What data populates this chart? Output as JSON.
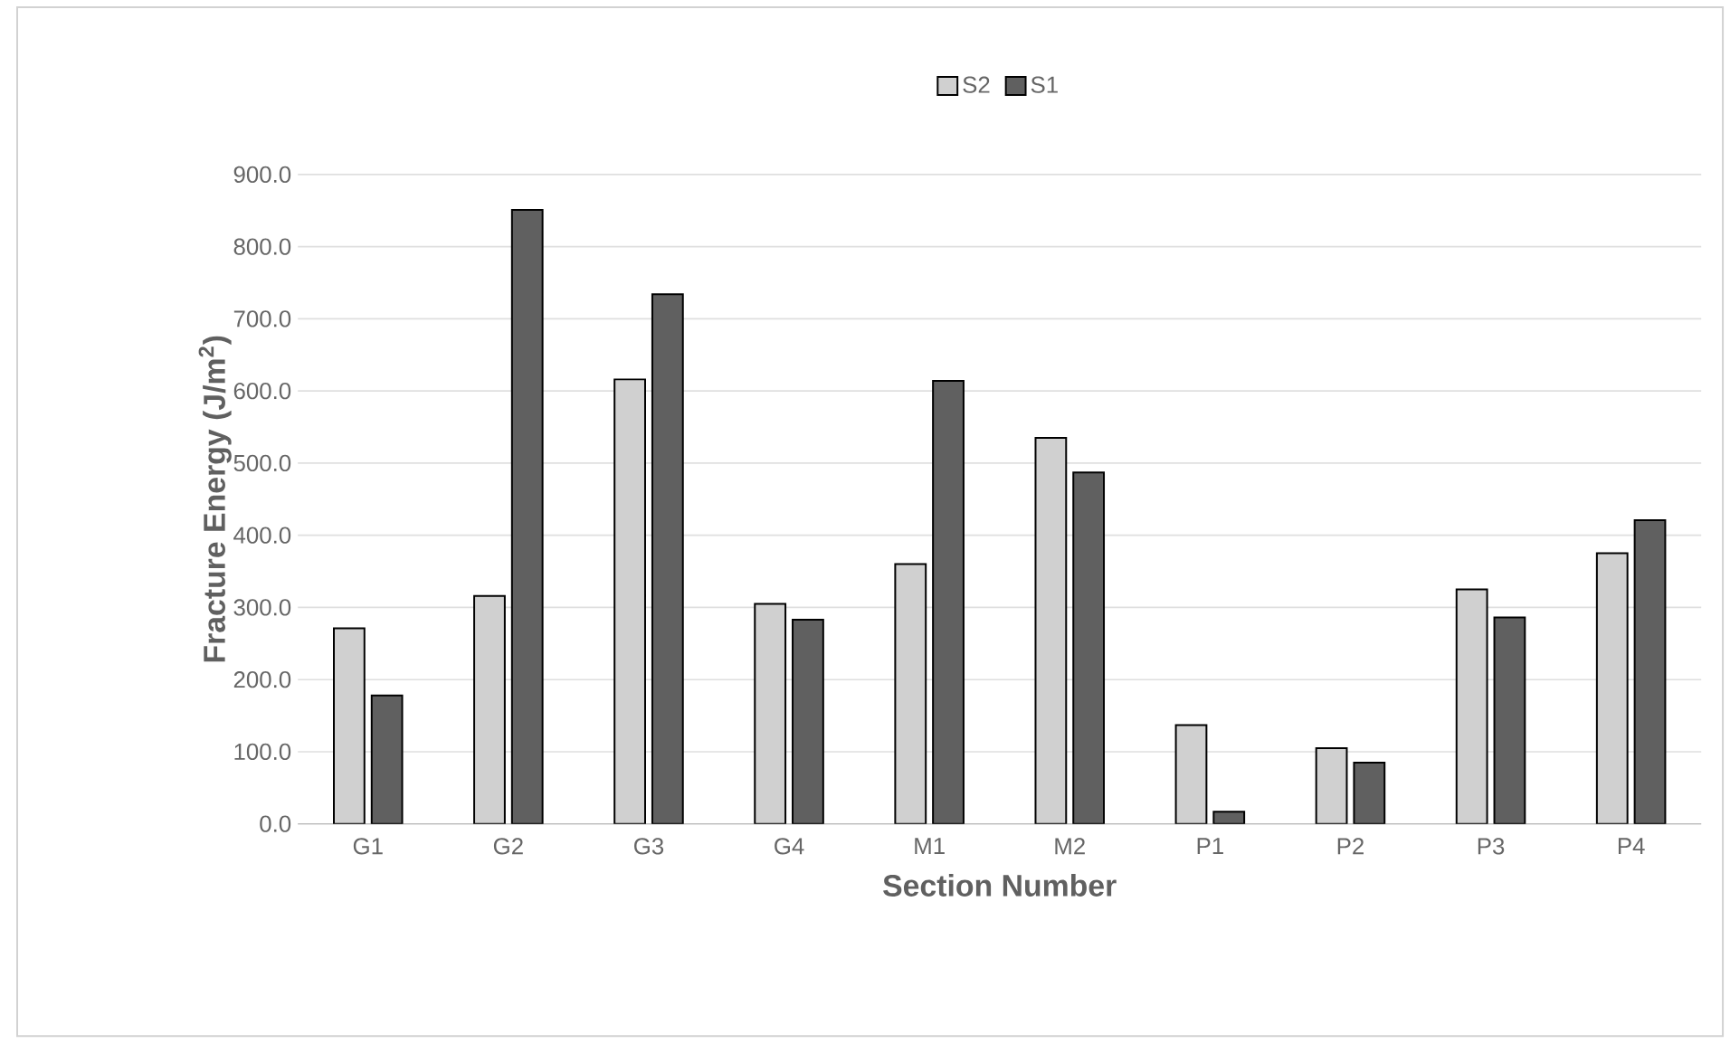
{
  "chart_data": {
    "type": "bar",
    "xlabel": "Section Number",
    "ylabel": "Fracture Energy (J/m$^{2}$)",
    "categories": [
      "G1",
      "G2",
      "G3",
      "G4",
      "M1",
      "M2",
      "P1",
      "P2",
      "P3",
      "P4"
    ],
    "series": [
      {
        "name": "S2",
        "color": "#d0d0d0",
        "values": [
          271,
          316,
          616,
          305,
          360,
          535,
          137,
          105,
          325,
          375
        ]
      },
      {
        "name": "S1",
        "color": "#606060",
        "values": [
          178,
          851,
          734,
          283,
          614,
          487,
          17,
          85,
          286,
          421
        ]
      }
    ],
    "ylim": [
      0,
      900
    ],
    "yticks": [
      {
        "value": 0,
        "label": "0.0"
      },
      {
        "value": 100,
        "label": "100.0"
      },
      {
        "value": 200,
        "label": "200.0"
      },
      {
        "value": 300,
        "label": "300.0"
      },
      {
        "value": 400,
        "label": "400.0"
      },
      {
        "value": 500,
        "label": "500.0"
      },
      {
        "value": 600,
        "label": "600.0"
      },
      {
        "value": 700,
        "label": "700.0"
      },
      {
        "value": 800,
        "label": "800.0"
      },
      {
        "value": 900,
        "label": "900.0"
      }
    ],
    "grid": "y",
    "legend": "top"
  }
}
